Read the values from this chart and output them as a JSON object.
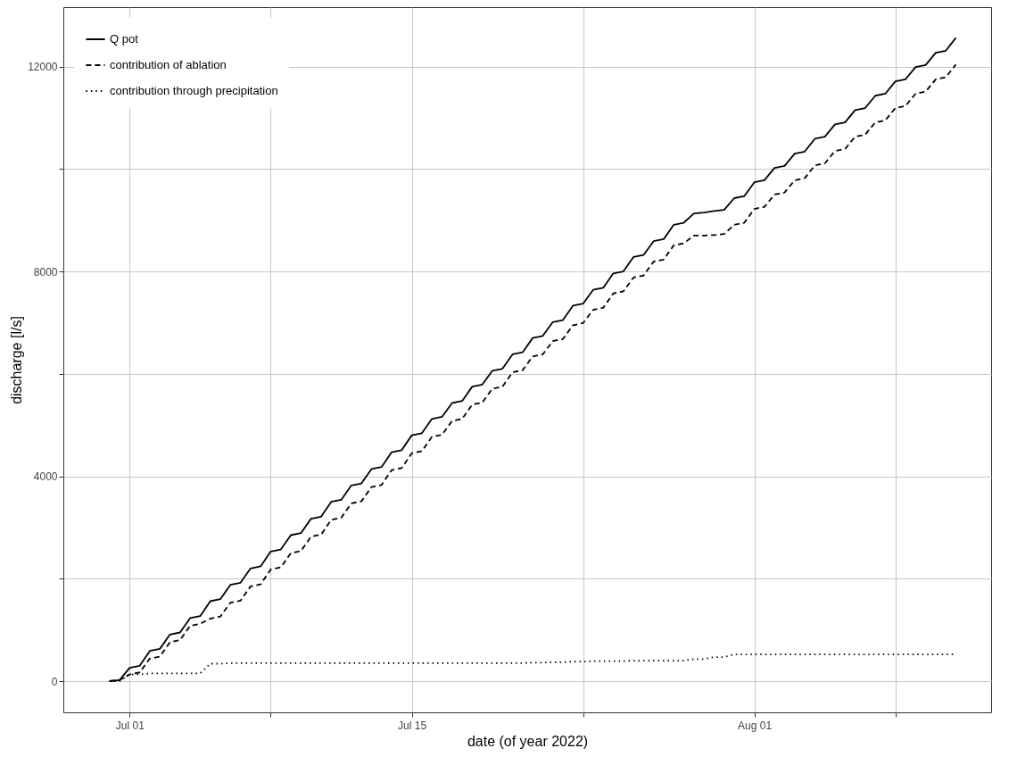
{
  "chart_data": {
    "type": "line",
    "xlabel": "date (of year 2022)",
    "ylabel": "discharge [l/s]",
    "x": [
      "2022-06-30T00:00",
      "2022-06-30T12:00",
      "2022-07-01T00:00",
      "2022-07-01T12:00",
      "2022-07-02T00:00",
      "2022-07-02T12:00",
      "2022-07-03T00:00",
      "2022-07-03T12:00",
      "2022-07-04T00:00",
      "2022-07-04T12:00",
      "2022-07-05T00:00",
      "2022-07-05T12:00",
      "2022-07-06T00:00",
      "2022-07-06T12:00",
      "2022-07-07T00:00",
      "2022-07-07T12:00",
      "2022-07-08T00:00",
      "2022-07-08T12:00",
      "2022-07-09T00:00",
      "2022-07-09T12:00",
      "2022-07-10T00:00",
      "2022-07-10T12:00",
      "2022-07-11T00:00",
      "2022-07-11T12:00",
      "2022-07-12T00:00",
      "2022-07-12T12:00",
      "2022-07-13T00:00",
      "2022-07-13T12:00",
      "2022-07-14T00:00",
      "2022-07-14T12:00",
      "2022-07-15T00:00",
      "2022-07-15T12:00",
      "2022-07-16T00:00",
      "2022-07-16T12:00",
      "2022-07-17T00:00",
      "2022-07-17T12:00",
      "2022-07-18T00:00",
      "2022-07-18T12:00",
      "2022-07-19T00:00",
      "2022-07-19T12:00",
      "2022-07-20T00:00",
      "2022-07-20T12:00",
      "2022-07-21T00:00",
      "2022-07-21T12:00",
      "2022-07-22T00:00",
      "2022-07-22T12:00",
      "2022-07-23T00:00",
      "2022-07-23T12:00",
      "2022-07-24T00:00",
      "2022-07-24T12:00",
      "2022-07-25T00:00",
      "2022-07-25T12:00",
      "2022-07-26T00:00",
      "2022-07-26T12:00",
      "2022-07-27T00:00",
      "2022-07-27T12:00",
      "2022-07-28T00:00",
      "2022-07-28T12:00",
      "2022-07-29T00:00",
      "2022-07-29T12:00",
      "2022-07-30T00:00",
      "2022-07-30T12:00",
      "2022-07-31T00:00",
      "2022-07-31T12:00",
      "2022-08-01T00:00",
      "2022-08-01T12:00",
      "2022-08-02T00:00",
      "2022-08-02T12:00",
      "2022-08-03T00:00",
      "2022-08-03T12:00",
      "2022-08-04T00:00",
      "2022-08-04T12:00",
      "2022-08-05T00:00",
      "2022-08-05T12:00",
      "2022-08-06T00:00",
      "2022-08-06T12:00",
      "2022-08-07T00:00",
      "2022-08-07T12:00",
      "2022-08-08T00:00",
      "2022-08-08T12:00",
      "2022-08-09T00:00",
      "2022-08-09T12:00",
      "2022-08-10T00:00",
      "2022-08-10T12:00",
      "2022-08-11T00:00"
    ],
    "series": [
      {
        "name": "Q pot",
        "color": "#000000",
        "line_style": "solid",
        "values": [
          0,
          20,
          260,
          300,
          590,
          630,
          910,
          950,
          1230,
          1270,
          1560,
          1600,
          1880,
          1920,
          2200,
          2240,
          2530,
          2570,
          2850,
          2890,
          3170,
          3210,
          3500,
          3540,
          3820,
          3860,
          4140,
          4180,
          4470,
          4510,
          4800,
          4840,
          5120,
          5160,
          5430,
          5470,
          5750,
          5790,
          6060,
          6100,
          6380,
          6420,
          6700,
          6740,
          7010,
          7050,
          7330,
          7370,
          7640,
          7680,
          7960,
          8000,
          8280,
          8320,
          8590,
          8630,
          8910,
          8950,
          9130,
          9150,
          9180,
          9200,
          9430,
          9470,
          9740,
          9780,
          10020,
          10060,
          10300,
          10340,
          10590,
          10630,
          10870,
          10910,
          11150,
          11190,
          11430,
          11470,
          11710,
          11750,
          11990,
          12030,
          12270,
          12310,
          12560
        ]
      },
      {
        "name": "contribution of ablation",
        "color": "#000000",
        "line_style": "dashed",
        "values": [
          0,
          20,
          130,
          170,
          440,
          480,
          760,
          800,
          1080,
          1120,
          1220,
          1260,
          1530,
          1570,
          1850,
          1890,
          2180,
          2220,
          2500,
          2540,
          2820,
          2860,
          3150,
          3190,
          3470,
          3510,
          3790,
          3830,
          4120,
          4160,
          4450,
          4490,
          4770,
          4810,
          5080,
          5120,
          5400,
          5440,
          5710,
          5750,
          6030,
          6070,
          6340,
          6380,
          6640,
          6680,
          6950,
          6990,
          7250,
          7290,
          7570,
          7610,
          7880,
          7920,
          8190,
          8230,
          8510,
          8550,
          8700,
          8700,
          8710,
          8730,
          8910,
          8950,
          9220,
          9260,
          9500,
          9540,
          9780,
          9820,
          10070,
          10110,
          10350,
          10390,
          10630,
          10670,
          10910,
          10950,
          11190,
          11230,
          11470,
          11510,
          11750,
          11790,
          12040
        ]
      },
      {
        "name": "contribution through precipitation",
        "color": "#000000",
        "line_style": "dotted",
        "values": [
          0,
          0,
          130,
          130,
          150,
          150,
          150,
          150,
          150,
          150,
          340,
          340,
          350,
          350,
          350,
          350,
          350,
          350,
          350,
          350,
          350,
          350,
          350,
          350,
          350,
          350,
          350,
          350,
          350,
          350,
          350,
          350,
          350,
          350,
          350,
          350,
          350,
          350,
          350,
          350,
          350,
          350,
          360,
          360,
          370,
          370,
          380,
          380,
          390,
          390,
          390,
          390,
          400,
          400,
          400,
          400,
          400,
          400,
          430,
          430,
          470,
          470,
          520,
          520,
          520,
          520,
          520,
          520,
          520,
          520,
          520,
          520,
          520,
          520,
          520,
          520,
          520,
          520,
          520,
          520,
          520,
          520,
          520,
          520,
          520
        ]
      }
    ],
    "xlim": [
      "2022-06-27T17:00",
      "2022-08-12T18:00"
    ],
    "xticks": [
      {
        "value": "2022-07-01T00:00",
        "label": "Jul 01"
      },
      {
        "value": "2022-07-08T00:00",
        "label": null
      },
      {
        "value": "2022-07-15T00:00",
        "label": "Jul 15"
      },
      {
        "value": "2022-07-23T12:00",
        "label": null
      },
      {
        "value": "2022-08-01T00:00",
        "label": "Aug 01"
      },
      {
        "value": "2022-08-08T00:00",
        "label": null
      }
    ],
    "ylim": [
      -610,
      13160
    ],
    "yticks": [
      0,
      {
        "value": 2000,
        "label": null
      },
      4000,
      {
        "value": 6000,
        "label": null
      },
      8000,
      {
        "value": 10000,
        "label": null
      },
      12000
    ],
    "grid": true,
    "legend": "top left"
  }
}
